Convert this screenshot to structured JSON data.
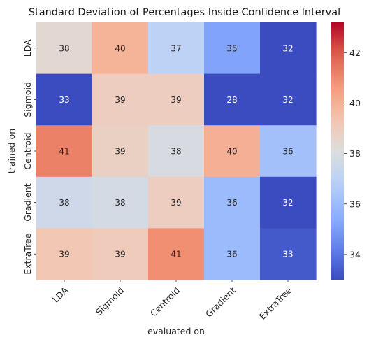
{
  "chart_data": {
    "type": "heatmap",
    "title": "Standard Deviation of Percentages Inside Confidence Interval",
    "xlabel": "evaluated on",
    "ylabel": "trained on",
    "x_categories": [
      "LDA",
      "Sigmoid",
      "Centroid",
      "Gradient",
      "ExtraTree"
    ],
    "y_categories": [
      "LDA",
      "Sigmoid",
      "Centroid",
      "Gradient",
      "ExtraTree"
    ],
    "values": [
      [
        38.4,
        39.9,
        37.0,
        35.2,
        32.4
      ],
      [
        33.0,
        38.9,
        38.9,
        28.0,
        32.3
      ],
      [
        41.2,
        38.8,
        37.9,
        40.0,
        36.2
      ],
      [
        37.6,
        37.8,
        38.9,
        36.0,
        32.3
      ],
      [
        39.2,
        39.0,
        40.9,
        36.0,
        33.3
      ]
    ],
    "annotations": [
      [
        "38",
        "40",
        "37",
        "35",
        "32"
      ],
      [
        "33",
        "39",
        "39",
        "28",
        "32"
      ],
      [
        "41",
        "39",
        "38",
        "40",
        "36"
      ],
      [
        "38",
        "38",
        "39",
        "36",
        "32"
      ],
      [
        "39",
        "39",
        "41",
        "36",
        "33"
      ]
    ],
    "colormap": "coolwarm",
    "color_range": [
      33.0,
      43.2
    ],
    "colorbar_ticks": [
      "34",
      "36",
      "38",
      "40",
      "42"
    ],
    "colorbar_tick_values": [
      34,
      36,
      38,
      40,
      42
    ],
    "grid": false,
    "colorbar_position": "right"
  }
}
